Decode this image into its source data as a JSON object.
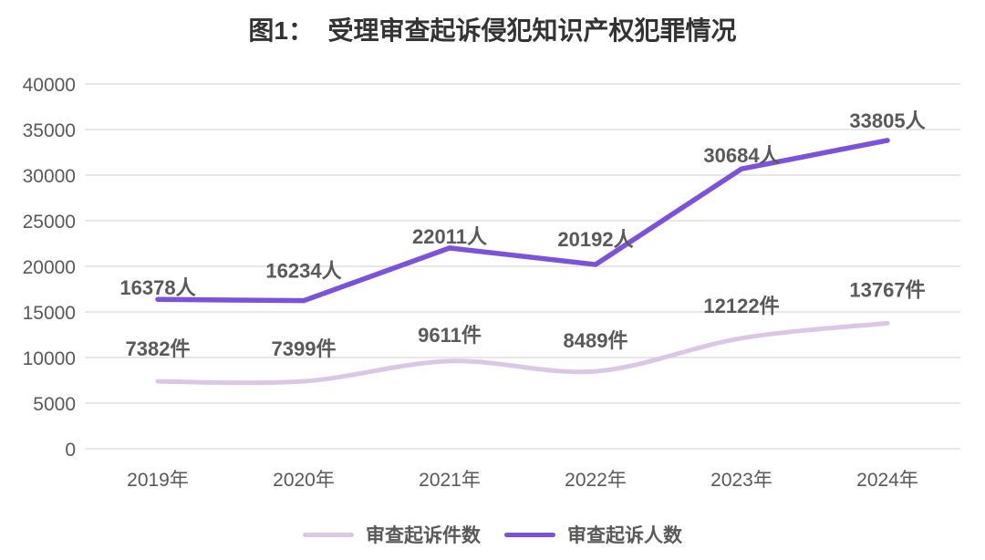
{
  "chart_data": {
    "type": "line",
    "title": "图1：  受理审查起诉侵犯知识产权犯罪情况",
    "categories": [
      "2019年",
      "2020年",
      "2021年",
      "2022年",
      "2023年",
      "2024年"
    ],
    "series": [
      {
        "name": "审查起诉件数",
        "unit": "件",
        "values": [
          7382,
          7399,
          9611,
          8489,
          12122,
          13767
        ],
        "labels": [
          "7382件",
          "7399件",
          "9611件",
          "8489件",
          "12122件",
          "13767件"
        ],
        "color": "#d9c7e5",
        "smooth": true,
        "stroke_width": 5,
        "label_dy": [
          -28,
          -28,
          -21,
          -26,
          -28,
          -29
        ]
      },
      {
        "name": "审查起诉人数",
        "unit": "人",
        "values": [
          16378,
          16234,
          22011,
          20192,
          30684,
          33805
        ],
        "labels": [
          "16378人",
          "16234人",
          "22011人",
          "20192人",
          "30684人",
          "33805人"
        ],
        "color": "#7b52d8",
        "smooth": false,
        "stroke_width": 5.5,
        "label_dy": [
          -5,
          -25,
          -5,
          -20,
          -7,
          -14
        ]
      }
    ],
    "ylim": [
      0,
      40000
    ],
    "yticks": [
      0,
      5000,
      10000,
      15000,
      20000,
      25000,
      30000,
      35000,
      40000
    ],
    "grid": "horizontal",
    "legend_position": "bottom",
    "colors": {
      "axis_text": "#595959",
      "data_label": "#595959",
      "grid_line": "#d9d9d9",
      "title_text": "#333333"
    }
  }
}
